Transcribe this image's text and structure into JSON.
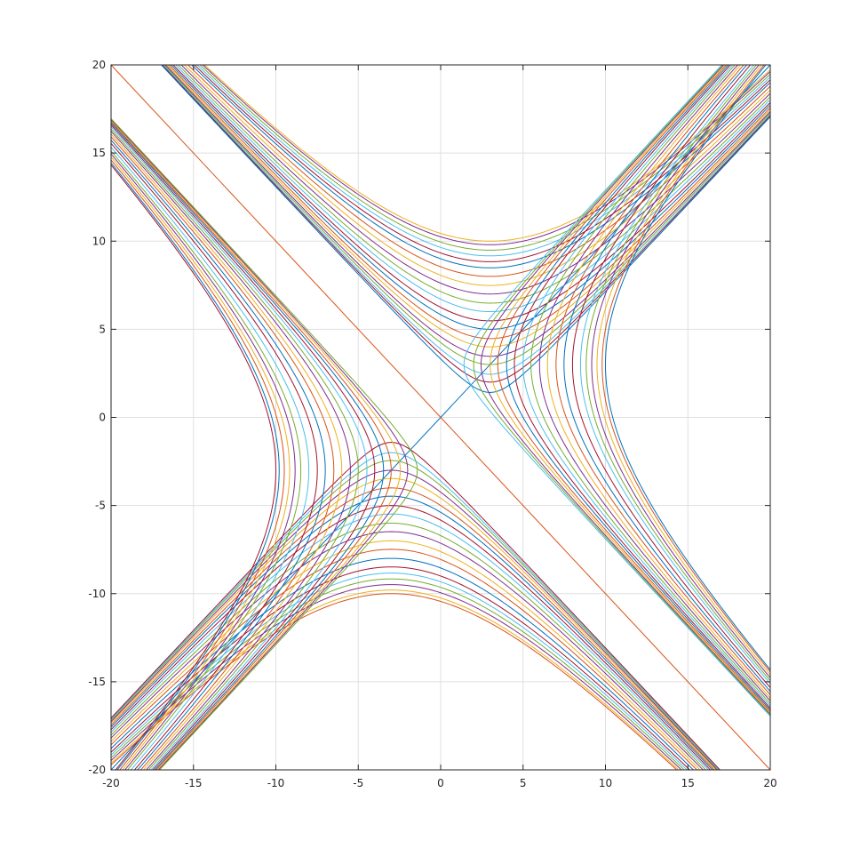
{
  "chart_data": {
    "type": "line",
    "title": "",
    "xlabel": "",
    "ylabel": "",
    "xlim": [
      -20,
      20
    ],
    "ylim": [
      -20,
      20
    ],
    "xticks": [
      "-20",
      "-15",
      "-10",
      "-5",
      "0",
      "5",
      "10",
      "15",
      "20"
    ],
    "yticks": [
      "-20",
      "-15",
      "-10",
      "-5",
      "0",
      "5",
      "10",
      "15",
      "20"
    ],
    "grid": true,
    "legend": "none",
    "colors": [
      "#0072bd",
      "#d95319",
      "#edb120",
      "#7e2f8e",
      "#77ac30",
      "#4dbeee",
      "#a2142f"
    ],
    "asymptotes": [
      {
        "x": [
          -20,
          20
        ],
        "y": [
          -20,
          20
        ]
      },
      {
        "x": [
          -20,
          20
        ],
        "y": [
          20,
          -20
        ]
      }
    ],
    "series_family": {
      "description_of_relation": "(x - x0)^2 - (y - y0)^2 = c",
      "upper_branches_c": [
        -100,
        -96,
        -90,
        -84,
        -78,
        -72,
        -64,
        -56,
        -49,
        -42,
        -36,
        -30,
        -25,
        -20,
        -16,
        -12,
        -9,
        -6,
        -4,
        -2
      ],
      "lower_branches_c": [
        -100,
        -96,
        -90,
        -84,
        -78,
        -72,
        -64,
        -56,
        -49,
        -42,
        -36,
        -30,
        -25,
        -20,
        -16,
        -12,
        -9,
        -6,
        -4,
        -2
      ],
      "right_branches_c": [
        100,
        96,
        90,
        84,
        78,
        72,
        64,
        56,
        49,
        42,
        36,
        30,
        25,
        20,
        16,
        12,
        9,
        6,
        4,
        2
      ],
      "left_branches_c": [
        100,
        96,
        90,
        84,
        78,
        72,
        64,
        56,
        49,
        42,
        36,
        30,
        25,
        20,
        16,
        12,
        9,
        6,
        4,
        2
      ],
      "upper_vertex_x": 3,
      "lower_vertex_x": -3,
      "right_vertex_y": 3,
      "left_vertex_y": -3
    }
  }
}
